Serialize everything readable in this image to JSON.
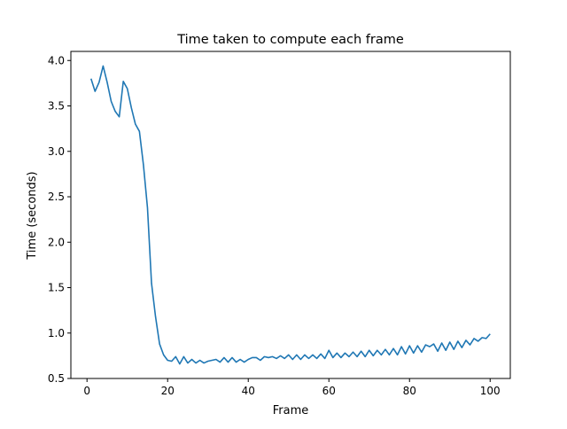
{
  "chart_data": {
    "type": "line",
    "title": "Time taken to compute each frame",
    "xlabel": "Frame",
    "ylabel": "Time (seconds)",
    "xlim": [
      -4,
      105
    ],
    "ylim": [
      0.5,
      4.1
    ],
    "grid": false,
    "x_ticks": [
      0,
      20,
      40,
      60,
      80,
      100
    ],
    "x_tick_labels": [
      "0",
      "20",
      "40",
      "60",
      "80",
      "100"
    ],
    "y_ticks": [
      0.5,
      1.0,
      1.5,
      2.0,
      2.5,
      3.0,
      3.5,
      4.0
    ],
    "y_tick_labels": [
      "0.5",
      "1.0",
      "1.5",
      "2.0",
      "2.5",
      "3.0",
      "3.5",
      "4.0"
    ],
    "series": [
      {
        "color": "#1f77b4",
        "x": [
          1,
          2,
          3,
          4,
          5,
          6,
          7,
          8,
          9,
          10,
          11,
          12,
          13,
          14,
          15,
          16,
          17,
          18,
          19,
          20,
          21,
          22,
          23,
          24,
          25,
          26,
          27,
          28,
          29,
          30,
          31,
          32,
          33,
          34,
          35,
          36,
          37,
          38,
          39,
          40,
          41,
          42,
          43,
          44,
          45,
          46,
          47,
          48,
          49,
          50,
          51,
          52,
          53,
          54,
          55,
          56,
          57,
          58,
          59,
          60,
          61,
          62,
          63,
          64,
          65,
          66,
          67,
          68,
          69,
          70,
          71,
          72,
          73,
          74,
          75,
          76,
          77,
          78,
          79,
          80,
          81,
          82,
          83,
          84,
          85,
          86,
          87,
          88,
          89,
          90,
          91,
          92,
          93,
          94,
          95,
          96,
          97,
          98,
          99,
          100
        ],
        "y": [
          3.8,
          3.66,
          3.76,
          3.94,
          3.76,
          3.55,
          3.44,
          3.38,
          3.77,
          3.69,
          3.48,
          3.3,
          3.22,
          2.85,
          2.38,
          1.55,
          1.18,
          0.88,
          0.76,
          0.7,
          0.69,
          0.74,
          0.66,
          0.74,
          0.67,
          0.71,
          0.67,
          0.7,
          0.67,
          0.69,
          0.7,
          0.71,
          0.68,
          0.73,
          0.68,
          0.73,
          0.68,
          0.71,
          0.68,
          0.71,
          0.73,
          0.73,
          0.7,
          0.74,
          0.73,
          0.74,
          0.72,
          0.75,
          0.72,
          0.76,
          0.71,
          0.76,
          0.71,
          0.76,
          0.72,
          0.76,
          0.72,
          0.77,
          0.72,
          0.81,
          0.73,
          0.78,
          0.73,
          0.78,
          0.74,
          0.79,
          0.74,
          0.8,
          0.74,
          0.81,
          0.75,
          0.81,
          0.76,
          0.82,
          0.76,
          0.83,
          0.76,
          0.85,
          0.77,
          0.86,
          0.78,
          0.86,
          0.79,
          0.87,
          0.85,
          0.88,
          0.8,
          0.89,
          0.81,
          0.9,
          0.82,
          0.91,
          0.84,
          0.92,
          0.87,
          0.94,
          0.91,
          0.95,
          0.94,
          0.99
        ]
      }
    ]
  }
}
